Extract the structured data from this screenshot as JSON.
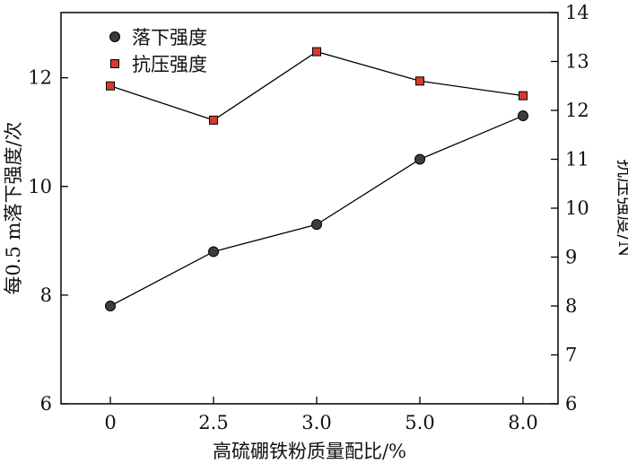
{
  "chart_data": {
    "type": "line",
    "categories": [
      "0",
      "2.5",
      "3.0",
      "5.0",
      "8.0"
    ],
    "xlabel": "高硫硼铁粉质量配比/%",
    "ylabel_left": "每0.5 m落下强度/次",
    "ylabel_right": "抗压强度/N",
    "ylim_left": [
      6,
      13.2
    ],
    "ylim_right": [
      6,
      14
    ],
    "yticks_left": [
      "6",
      "8",
      "10",
      "12"
    ],
    "yticks_right": [
      "6",
      "7",
      "8",
      "9",
      "10",
      "11",
      "12",
      "13",
      "14"
    ],
    "legend_position": "top-left",
    "grid": false,
    "series": [
      {
        "name": "落下强度",
        "axis": "left",
        "marker": "circle",
        "color": "#3c3c3c",
        "values": [
          7.8,
          8.8,
          9.3,
          10.5,
          11.3
        ]
      },
      {
        "name": "抗压强度",
        "axis": "right",
        "marker": "square",
        "color": "#d63a30",
        "values": [
          12.5,
          11.8,
          13.2,
          12.6,
          12.3
        ]
      }
    ]
  }
}
